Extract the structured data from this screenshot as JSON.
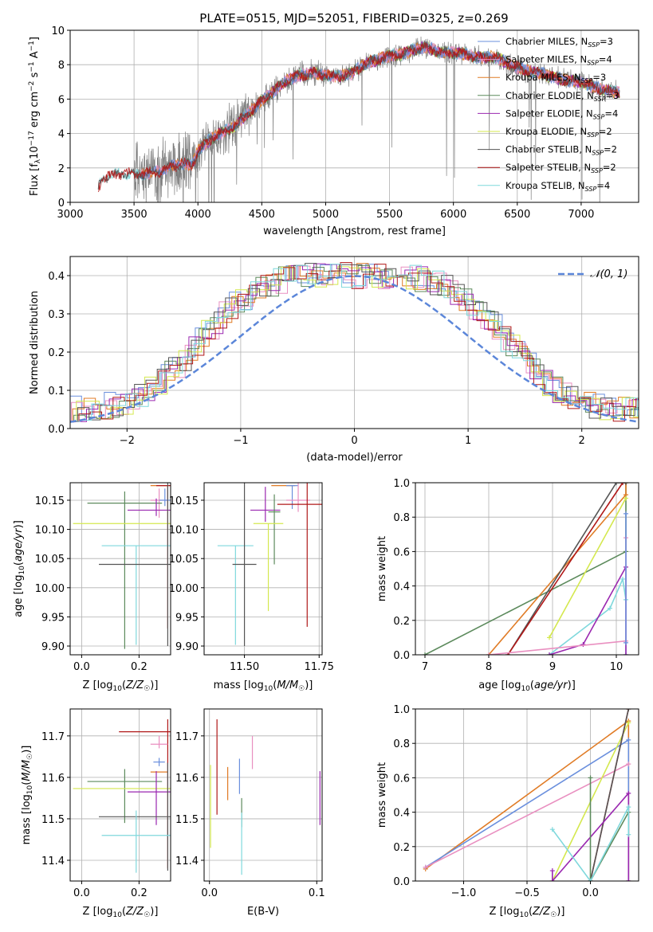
{
  "title": "PLATE=0515, MJD=52051, FIBERID=0325, z=0.269",
  "colors": {
    "chabrier_miles": "#6a8fdd",
    "salpeter_miles": "#e98fc0",
    "kroupa_miles": "#e07b25",
    "chabrier_elodie": "#5c8a5c",
    "salpeter_elodie": "#9a27b0",
    "kroupa_elodie": "#d4e84e",
    "chabrier_stelib": "#555555",
    "salpeter_stelib": "#b01818",
    "kroupa_stelib": "#7fd8dc",
    "data": "#7f7f7f",
    "gauss": "#5b86d9",
    "grid": "#b0b0b0"
  },
  "legend": [
    {
      "key": "chabrier_miles",
      "label": "Chabrier MILES, N",
      "sub": "SSP",
      "tail": "=3"
    },
    {
      "key": "salpeter_miles",
      "label": "Salpeter MILES, N",
      "sub": "SSP",
      "tail": "=4"
    },
    {
      "key": "kroupa_miles",
      "label": "Kroupa MILES, N",
      "sub": "SSP",
      "tail": "=3"
    },
    {
      "key": "chabrier_elodie",
      "label": "Chabrier ELODIE, N",
      "sub": "SSP",
      "tail": "=3"
    },
    {
      "key": "salpeter_elodie",
      "label": "Salpeter ELODIE, N",
      "sub": "SSP",
      "tail": "=4"
    },
    {
      "key": "kroupa_elodie",
      "label": "Kroupa ELODIE, N",
      "sub": "SSP",
      "tail": "=2"
    },
    {
      "key": "chabrier_stelib",
      "label": "Chabrier STELIB, N",
      "sub": "SSP",
      "tail": "=2"
    },
    {
      "key": "salpeter_stelib",
      "label": "Salpeter STELIB, N",
      "sub": "SSP",
      "tail": "=2"
    },
    {
      "key": "kroupa_stelib",
      "label": "Kroupa STELIB, N",
      "sub": "SSP",
      "tail": "=4"
    }
  ],
  "chart_data": [
    {
      "id": "spectrum",
      "type": "line",
      "xlabel": "wavelength [Angstrom, rest frame]",
      "ylabel_parts": [
        "Flux [f",
        "λ",
        "10",
        "−17",
        " erg cm",
        "−2",
        " s",
        "−1",
        " A",
        "−1",
        "]"
      ],
      "xlim": [
        3000,
        7450
      ],
      "ylim": [
        0,
        10
      ],
      "xticks": [
        3000,
        3500,
        4000,
        4500,
        5000,
        5500,
        6000,
        6500,
        7000
      ],
      "yticks": [
        0,
        2,
        4,
        6,
        8,
        10
      ],
      "continuum_points": [
        [
          3220,
          0.9
        ],
        [
          3260,
          1.4
        ],
        [
          3400,
          1.7
        ],
        [
          3500,
          1.6
        ],
        [
          3600,
          1.7
        ],
        [
          3700,
          1.8
        ],
        [
          3800,
          2.1
        ],
        [
          3900,
          2.3
        ],
        [
          3950,
          2.1
        ],
        [
          4000,
          3.0
        ],
        [
          4100,
          3.7
        ],
        [
          4200,
          4.1
        ],
        [
          4300,
          4.5
        ],
        [
          4400,
          5.2
        ],
        [
          4500,
          5.9
        ],
        [
          4600,
          6.5
        ],
        [
          4700,
          7.1
        ],
        [
          4800,
          7.4
        ],
        [
          4900,
          7.5
        ],
        [
          5000,
          7.4
        ],
        [
          5100,
          7.3
        ],
        [
          5200,
          7.5
        ],
        [
          5300,
          8.0
        ],
        [
          5400,
          8.3
        ],
        [
          5500,
          8.5
        ],
        [
          5600,
          8.6
        ],
        [
          5700,
          8.9
        ],
        [
          5800,
          9.0
        ],
        [
          5900,
          8.7
        ],
        [
          6000,
          8.7
        ],
        [
          6100,
          8.6
        ],
        [
          6200,
          8.4
        ],
        [
          6300,
          8.5
        ],
        [
          6400,
          8.2
        ],
        [
          6500,
          7.8
        ],
        [
          6600,
          7.6
        ],
        [
          6700,
          7.5
        ],
        [
          6800,
          7.2
        ],
        [
          6900,
          7.1
        ],
        [
          7000,
          7.0
        ],
        [
          7100,
          6.7
        ],
        [
          7200,
          6.5
        ],
        [
          7300,
          6.4
        ]
      ],
      "data_range": [
        3500,
        7300
      ]
    },
    {
      "id": "residuals",
      "type": "histogram",
      "xlabel": "(data-model)/error",
      "ylabel": "Normed distribution",
      "xlim": [
        -2.5,
        2.5
      ],
      "ylim": [
        0,
        0.45
      ],
      "xticks": [
        -2,
        -1,
        0,
        1,
        2
      ],
      "xtick_labels": [
        "−2",
        "−1",
        "0",
        "1",
        "2"
      ],
      "yticks": [
        0,
        0.1,
        0.2,
        0.3,
        0.4
      ],
      "ytick_labels": [
        "0.0",
        "0.1",
        "0.2",
        "0.3",
        "0.4"
      ],
      "gauss_label": "𝒩(0, 1)",
      "bin_width": 0.1
    },
    {
      "id": "age_vs_Z",
      "type": "errorbar",
      "xlabel": "Z [log10(Z/Z☉)]",
      "ylabel": "age [log10(age/yr)]",
      "xlim": [
        -0.04,
        0.31
      ],
      "ylim": [
        9.885,
        10.18
      ],
      "xticks": [
        0.0,
        0.2
      ],
      "xtick_labels": [
        "0.0",
        "0.2"
      ],
      "yticks": [
        9.9,
        9.95,
        10.0,
        10.05,
        10.1,
        10.15
      ],
      "ytick_labels": [
        "9.90",
        "9.95",
        "10.00",
        "10.05",
        "10.10",
        "10.15"
      ],
      "points": [
        {
          "key": "kroupa_miles",
          "x": 0.27,
          "xerr": 0.03,
          "y": 10.175,
          "yerr": [
            0.0,
            0.0
          ]
        },
        {
          "key": "salpeter_stelib",
          "x": 0.3,
          "xerr": 0.04,
          "y": 10.175,
          "yerr": [
            0.245,
            0.0
          ]
        },
        {
          "key": "salpeter_miles",
          "x": 0.27,
          "xerr": 0.03,
          "y": 10.15,
          "yerr": [
            0.03,
            0.02
          ]
        },
        {
          "key": "chabrier_miles",
          "x": 0.29,
          "xerr": 0.02,
          "y": 10.15,
          "yerr": [
            0.01,
            0.02
          ]
        },
        {
          "key": "chabrier_elodie",
          "x": 0.15,
          "xerr": 0.13,
          "y": 10.145,
          "yerr": [
            0.25,
            0.02
          ]
        },
        {
          "key": "salpeter_elodie",
          "x": 0.26,
          "xerr": 0.1,
          "y": 10.133,
          "yerr": [
            0.01,
            0.02
          ]
        },
        {
          "key": "kroupa_elodie",
          "x": 0.2,
          "xerr": 0.23,
          "y": 10.11,
          "yerr": [
            0.0,
            0.0
          ]
        },
        {
          "key": "kroupa_stelib",
          "x": 0.19,
          "xerr": 0.12,
          "y": 10.072,
          "yerr": [
            0.17,
            0.0
          ]
        },
        {
          "key": "chabrier_stelib",
          "x": 0.3,
          "xerr": 0.24,
          "y": 10.04,
          "yerr": [
            0.14,
            0.14
          ]
        }
      ]
    },
    {
      "id": "age_vs_mass",
      "type": "errorbar",
      "xlabel": "mass [log10(M/M☉)]",
      "xlim": [
        11.365,
        11.76
      ],
      "ylim": [
        9.885,
        10.18
      ],
      "xticks": [
        11.5,
        11.75
      ],
      "xtick_labels": [
        "11.50",
        "11.75"
      ],
      "yticks": [
        9.9,
        9.95,
        10.0,
        10.05,
        10.1,
        10.15
      ],
      "ytick_labels": [
        "9.90",
        "9.95",
        "10.00",
        "10.05",
        "10.10",
        "10.15"
      ],
      "points": [
        {
          "key": "kroupa_miles",
          "x": 11.63,
          "xerr": 0.04,
          "y": 10.175,
          "yerr": [
            0.0,
            0.0
          ]
        },
        {
          "key": "chabrier_miles",
          "x": 11.66,
          "xerr": 0.02,
          "y": 10.175,
          "yerr": [
            0.04,
            0.0
          ]
        },
        {
          "key": "salpeter_miles",
          "x": 11.68,
          "xerr": 0.04,
          "y": 10.15,
          "yerr": [
            0.02,
            0.03
          ]
        },
        {
          "key": "salpeter_stelib",
          "x": 11.71,
          "xerr": 0.1,
          "y": 10.143,
          "yerr": [
            0.21,
            0.04
          ]
        },
        {
          "key": "salpeter_elodie",
          "x": 11.57,
          "xerr": 0.05,
          "y": 10.133,
          "yerr": [
            0.02,
            0.04
          ]
        },
        {
          "key": "chabrier_elodie",
          "x": 11.6,
          "xerr": 0.02,
          "y": 10.13,
          "yerr": [
            0.09,
            0.03
          ]
        },
        {
          "key": "kroupa_elodie",
          "x": 11.58,
          "xerr": 0.05,
          "y": 10.11,
          "yerr": [
            0.15,
            0.0
          ]
        },
        {
          "key": "kroupa_stelib",
          "x": 11.47,
          "xerr": 0.06,
          "y": 10.072,
          "yerr": [
            0.17,
            0.0
          ]
        },
        {
          "key": "chabrier_stelib",
          "x": 11.5,
          "xerr": 0.04,
          "y": 10.04,
          "yerr": [
            0.14,
            0.14
          ]
        }
      ]
    },
    {
      "id": "mass_weight_vs_age",
      "type": "line",
      "xlabel": "age [log10(age/yr)]",
      "ylabel": "mass weight",
      "xlim": [
        6.85,
        10.35
      ],
      "ylim": [
        0,
        1.0
      ],
      "xticks": [
        7,
        8,
        9,
        10
      ],
      "yticks": [
        0,
        0.2,
        0.4,
        0.6,
        0.8,
        1.0
      ],
      "ytick_labels": [
        "0.0",
        "0.2",
        "0.4",
        "0.6",
        "0.8",
        "1.0"
      ],
      "series": [
        {
          "key": "chabrier_elodie",
          "x": [
            7.0,
            10.15,
            10.15
          ],
          "y": [
            0.0,
            0.6,
            1.0
          ]
        },
        {
          "key": "kroupa_miles",
          "x": [
            8.0,
            10.15,
            10.15
          ],
          "y": [
            0.0,
            0.93,
            1.0
          ]
        },
        {
          "key": "chabrier_stelib",
          "x": [
            8.3,
            10.0,
            10.15
          ],
          "y": [
            0.0,
            1.0,
            1.0
          ]
        },
        {
          "key": "salpeter_stelib",
          "x": [
            8.3,
            10.1
          ],
          "y": [
            0.0,
            1.0
          ]
        },
        {
          "key": "kroupa_elodie",
          "x": [
            8.95,
            10.15
          ],
          "y": [
            0.1,
            0.91
          ]
        },
        {
          "key": "kroupa_stelib",
          "x": [
            8.95,
            9.9,
            10.1,
            10.15,
            10.15
          ],
          "y": [
            0.0,
            0.27,
            0.44,
            0.32,
            0.0
          ]
        },
        {
          "key": "salpeter_elodie",
          "x": [
            8.95,
            9.48,
            10.15,
            10.15
          ],
          "y": [
            0.0,
            0.06,
            0.51,
            0.0
          ]
        },
        {
          "key": "salpeter_miles",
          "x": [
            8.0,
            10.15,
            10.15
          ],
          "y": [
            0.0,
            0.08,
            0.68
          ]
        },
        {
          "key": "chabrier_miles",
          "x": [
            10.15,
            10.15
          ],
          "y": [
            0.07,
            0.82
          ]
        }
      ]
    },
    {
      "id": "mass_vs_Z",
      "type": "errorbar",
      "xlabel": "Z [log10(Z/Z☉)]",
      "ylabel": "mass [log10(M/M☉)]",
      "xlim": [
        -0.04,
        0.31
      ],
      "ylim": [
        11.35,
        11.765
      ],
      "xticks": [
        0.0,
        0.2
      ],
      "xtick_labels": [
        "0.0",
        "0.2"
      ],
      "yticks": [
        11.4,
        11.5,
        11.6,
        11.7
      ],
      "ytick_labels": [
        "11.4",
        "11.5",
        "11.6",
        "11.7"
      ],
      "points": [
        {
          "key": "salpeter_stelib",
          "x": 0.3,
          "xerr": 0.17,
          "y": 11.71,
          "yerr": [
            0.33,
            0.03
          ]
        },
        {
          "key": "salpeter_miles",
          "x": 0.27,
          "xerr": 0.03,
          "y": 11.68,
          "yerr": [
            0.01,
            0.02
          ]
        },
        {
          "key": "chabrier_miles",
          "x": 0.27,
          "xerr": 0.02,
          "y": 11.637,
          "yerr": [
            0.01,
            0.01
          ]
        },
        {
          "key": "kroupa_miles",
          "x": 0.27,
          "xerr": 0.03,
          "y": 11.613,
          "yerr": [
            0.0,
            0.0
          ]
        },
        {
          "key": "chabrier_elodie",
          "x": 0.15,
          "xerr": 0.13,
          "y": 11.59,
          "yerr": [
            0.1,
            0.03
          ]
        },
        {
          "key": "kroupa_elodie",
          "x": 0.2,
          "xerr": 0.23,
          "y": 11.573,
          "yerr": [
            0.0,
            0.0
          ]
        },
        {
          "key": "salpeter_elodie",
          "x": 0.26,
          "xerr": 0.1,
          "y": 11.565,
          "yerr": [
            0.08,
            0.05
          ]
        },
        {
          "key": "chabrier_stelib",
          "x": 0.3,
          "xerr": 0.24,
          "y": 11.505,
          "yerr": [
            0.13,
            0.13
          ]
        },
        {
          "key": "kroupa_stelib",
          "x": 0.19,
          "xerr": 0.12,
          "y": 11.46,
          "yerr": [
            0.09,
            0.06
          ]
        }
      ]
    },
    {
      "id": "mass_vs_EBV",
      "type": "errorbar",
      "xlabel": "E(B-V)",
      "xlim": [
        -0.005,
        0.105
      ],
      "ylim": [
        11.35,
        11.765
      ],
      "xticks": [
        0.0,
        0.1
      ],
      "xtick_labels": [
        "0.0",
        "0.1"
      ],
      "yticks": [
        11.4,
        11.5,
        11.6,
        11.7
      ],
      "ytick_labels": [
        "11.4",
        "11.5",
        "11.6",
        "11.7"
      ],
      "points": [
        {
          "key": "kroupa_elodie",
          "x": 0.001,
          "xerr": 0.0,
          "y": 11.55,
          "yerr": [
            0.12,
            0.08
          ]
        },
        {
          "key": "salpeter_stelib",
          "x": 0.007,
          "xerr": 0.0,
          "y": 11.62,
          "yerr": [
            0.11,
            0.12
          ]
        },
        {
          "key": "kroupa_miles",
          "x": 0.017,
          "xerr": 0.0,
          "y": 11.585,
          "yerr": [
            0.04,
            0.04
          ]
        },
        {
          "key": "chabrier_miles",
          "x": 0.028,
          "xerr": 0.0,
          "y": 11.6,
          "yerr": [
            0.04,
            0.045
          ]
        },
        {
          "key": "chabrier_elodie",
          "x": 0.03,
          "xerr": 0.0,
          "y": 11.52,
          "yerr": [
            0.04,
            0.03
          ]
        },
        {
          "key": "kroupa_stelib",
          "x": 0.03,
          "xerr": 0.0,
          "y": 11.455,
          "yerr": [
            0.09,
            0.06
          ]
        },
        {
          "key": "salpeter_miles",
          "x": 0.04,
          "xerr": 0.0,
          "y": 11.66,
          "yerr": [
            0.04,
            0.04
          ]
        },
        {
          "key": "salpeter_elodie",
          "x": 0.103,
          "xerr": 0.0,
          "y": 11.545,
          "yerr": [
            0.06,
            0.07
          ]
        }
      ]
    },
    {
      "id": "mass_weight_vs_Z",
      "type": "line",
      "xlabel": "Z [log10(Z/Z☉)]",
      "ylabel": "mass weight",
      "xlim": [
        -1.38,
        0.38
      ],
      "ylim": [
        0,
        1.0
      ],
      "xticks": [
        -1.0,
        -0.5,
        0.0
      ],
      "xtick_labels": [
        "−1.0",
        "−0.5",
        "0.0"
      ],
      "yticks": [
        0,
        0.2,
        0.4,
        0.6,
        0.8,
        1.0
      ],
      "ytick_labels": [
        "0.0",
        "0.2",
        "0.4",
        "0.6",
        "0.8",
        "1.0"
      ],
      "series": [
        {
          "key": "kroupa_miles",
          "x": [
            -1.3,
            0.3,
            0.3
          ],
          "y": [
            0.07,
            0.93,
            0.0
          ]
        },
        {
          "key": "chabrier_miles",
          "x": [
            -1.3,
            0.3,
            0.3
          ],
          "y": [
            0.08,
            0.82,
            0.0
          ]
        },
        {
          "key": "salpeter_miles",
          "x": [
            -1.3,
            0.3
          ],
          "y": [
            0.08,
            0.68
          ]
        },
        {
          "key": "kroupa_elodie",
          "x": [
            -0.3,
            0.3
          ],
          "y": [
            0.0,
            0.92
          ]
        },
        {
          "key": "salpeter_stelib",
          "x": [
            0.0,
            0.3
          ],
          "y": [
            0.0,
            1.0
          ]
        },
        {
          "key": "chabrier_stelib",
          "x": [
            0.0,
            0.3
          ],
          "y": [
            0.0,
            1.0
          ]
        },
        {
          "key": "salpeter_elodie",
          "x": [
            -0.3,
            -0.3,
            0.3,
            0.3
          ],
          "y": [
            0.06,
            0.0,
            0.51,
            0.0
          ]
        },
        {
          "key": "chabrier_elodie",
          "x": [
            0.0,
            0.0,
            0.3
          ],
          "y": [
            0.6,
            0.0,
            0.4
          ]
        },
        {
          "key": "kroupa_stelib",
          "x": [
            -0.3,
            0.0,
            0.3,
            0.3
          ],
          "y": [
            0.3,
            0.0,
            0.43,
            0.27
          ]
        }
      ]
    }
  ]
}
